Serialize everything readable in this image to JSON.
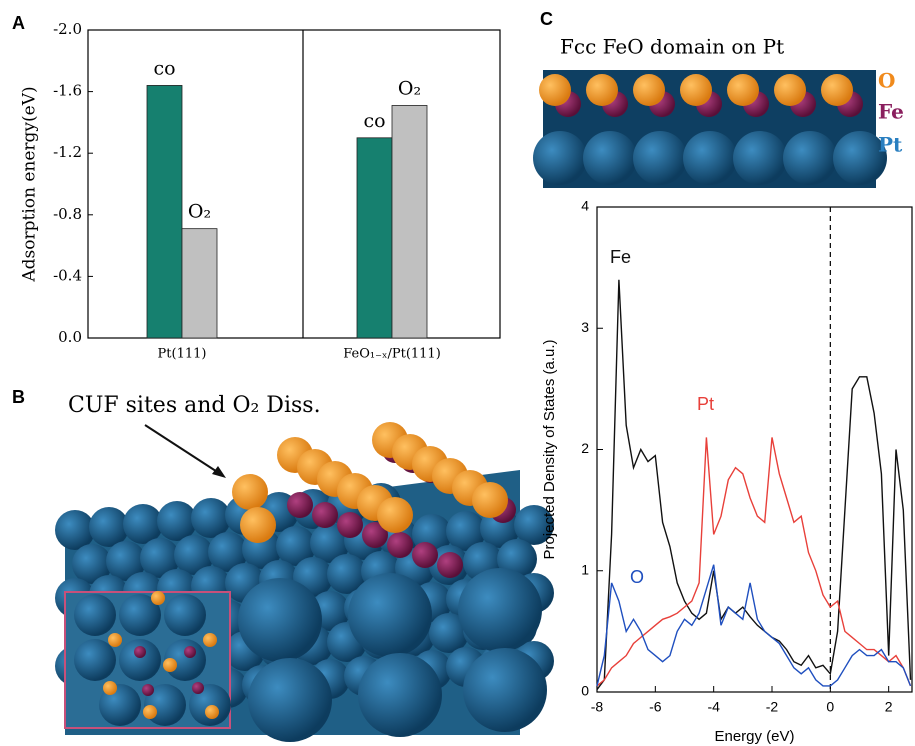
{
  "figure": {
    "panel_labels": [
      "A",
      "B",
      "C"
    ],
    "illustration_b": {
      "title": "CUF sites and O₂ Diss."
    },
    "illustration_c": {
      "title": "Fcc FeO domain on Pt",
      "legend": [
        "O",
        "Fe",
        "Pt"
      ]
    }
  },
  "chart_data": [
    {
      "type": "bar",
      "ylabel": "Adsorption energy(eV)",
      "categories": [
        "Pt(111)",
        "FeO₁₋ₓ/Pt(111)"
      ],
      "series": [
        {
          "name": "co",
          "color": "#16806f",
          "values": [
            -1.64,
            -1.3
          ]
        },
        {
          "name": "O₂",
          "color": "#c0c0c0",
          "values": [
            -0.71,
            -1.51
          ]
        }
      ],
      "ylim": [
        0,
        -2
      ],
      "yticks": [
        {
          "value": 0,
          "label": "0.0"
        },
        -0.4,
        -0.8,
        -1.2,
        -1.6,
        {
          "value": -2,
          "label": "-2.0"
        }
      ]
    },
    {
      "type": "line",
      "xlabel": "Energy (eV)",
      "ylabel": "Projected Density of States (a.u.)",
      "x": [
        -8,
        -7.75,
        -7.5,
        -7.25,
        -7,
        -6.75,
        -6.5,
        -6.25,
        -6,
        -5.75,
        -5.5,
        -5.25,
        -5,
        -4.75,
        -4.5,
        -4.25,
        -4,
        -3.75,
        -3.5,
        -3.25,
        -3,
        -2.75,
        -2.5,
        -2.25,
        -2,
        -1.75,
        -1.5,
        -1.25,
        -1,
        -0.75,
        -0.5,
        -0.25,
        0,
        0.25,
        0.5,
        0.75,
        1,
        1.25,
        1.5,
        1.75,
        2,
        2.25,
        2.5,
        2.75
      ],
      "series": [
        {
          "name": "Fe",
          "color": "#111111",
          "values": [
            0.02,
            0.1,
            1.3,
            3.4,
            2.2,
            1.85,
            2.0,
            1.9,
            1.95,
            1.4,
            1.2,
            0.9,
            0.75,
            0.65,
            0.6,
            0.65,
            1.0,
            0.6,
            0.7,
            0.65,
            0.7,
            0.62,
            0.55,
            0.5,
            0.45,
            0.42,
            0.35,
            0.25,
            0.22,
            0.3,
            0.2,
            0.22,
            0.15,
            0.5,
            1.5,
            2.5,
            2.6,
            2.6,
            2.3,
            1.8,
            0.3,
            2.0,
            1.5,
            0.1
          ]
        },
        {
          "name": "Pt",
          "color": "#e8403a",
          "values": [
            0.05,
            0.1,
            0.2,
            0.25,
            0.3,
            0.4,
            0.45,
            0.5,
            0.55,
            0.6,
            0.62,
            0.65,
            0.7,
            0.75,
            0.9,
            2.1,
            1.3,
            1.45,
            1.75,
            1.85,
            1.8,
            1.6,
            1.45,
            1.4,
            2.1,
            1.8,
            1.6,
            1.4,
            1.45,
            1.15,
            1.0,
            0.8,
            0.7,
            0.75,
            0.5,
            0.45,
            0.4,
            0.35,
            0.35,
            0.3,
            0.25,
            0.3,
            0.2,
            0.05
          ]
        },
        {
          "name": "O",
          "color": "#1f4fbf",
          "values": [
            0.05,
            0.3,
            0.9,
            0.75,
            0.5,
            0.6,
            0.5,
            0.35,
            0.3,
            0.25,
            0.3,
            0.5,
            0.6,
            0.55,
            0.65,
            0.85,
            1.05,
            0.55,
            0.7,
            0.65,
            0.6,
            0.9,
            0.6,
            0.5,
            0.45,
            0.4,
            0.3,
            0.2,
            0.15,
            0.2,
            0.1,
            0.05,
            0.05,
            0.1,
            0.2,
            0.3,
            0.35,
            0.3,
            0.3,
            0.35,
            0.25,
            0.25,
            0.2,
            0.05
          ]
        }
      ],
      "xlim": [
        -8,
        2.8
      ],
      "xticks": [
        -8,
        -6,
        -4,
        -2,
        0,
        2
      ],
      "ylim": [
        0,
        4
      ],
      "yticks": [
        0,
        1,
        2,
        3,
        4
      ]
    }
  ]
}
